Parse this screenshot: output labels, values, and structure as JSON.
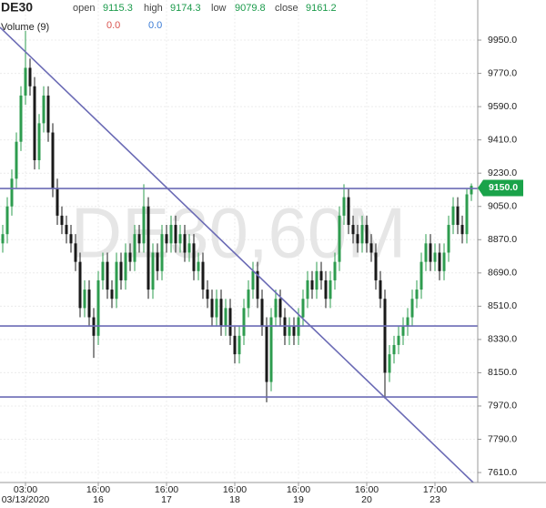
{
  "chart_data": {
    "type": "candlestick",
    "symbol": "DE30",
    "header": [
      {
        "label": "open",
        "value": "9115.3"
      },
      {
        "label": "high",
        "value": "9174.3"
      },
      {
        "label": "low",
        "value": "9079.8"
      },
      {
        "label": "close",
        "value": "9161.2"
      }
    ],
    "volume_label": "Volume (9)",
    "volume_values": [
      {
        "text": "0.0",
        "color": "#d9534f"
      },
      {
        "text": "0.0",
        "color": "#3a7bd5"
      }
    ],
    "watermark": "DE30,60M",
    "up_color": "#2e9c4f",
    "down_color": "#1a1a1a",
    "categories": [
      null,
      null,
      null,
      null,
      null,
      "03:00",
      null,
      null,
      null,
      null,
      null,
      null,
      null,
      null,
      null,
      null,
      null,
      null,
      null,
      null,
      null,
      "16:00",
      null,
      null,
      null,
      null,
      null,
      null,
      null,
      null,
      null,
      null,
      null,
      null,
      null,
      null,
      "16:00",
      null,
      null,
      null,
      null,
      null,
      null,
      null,
      null,
      null,
      null,
      null,
      null,
      null,
      null,
      "16:00",
      null,
      null,
      null,
      null,
      null,
      null,
      null,
      null,
      null,
      null,
      null,
      null,
      null,
      "16:00",
      null,
      null,
      null,
      null,
      null,
      null,
      null,
      null,
      null,
      null,
      null,
      null,
      null,
      null,
      "16:00",
      null,
      null,
      null,
      null,
      null,
      null,
      null,
      null,
      null,
      null,
      null,
      null,
      null,
      null,
      "17:00",
      null,
      null,
      null,
      null,
      null,
      null,
      null,
      null
    ],
    "dates": [
      null,
      null,
      null,
      null,
      null,
      "03/13/2020",
      null,
      null,
      null,
      null,
      null,
      null,
      null,
      null,
      null,
      null,
      null,
      null,
      null,
      null,
      null,
      "16",
      null,
      null,
      null,
      null,
      null,
      null,
      null,
      null,
      null,
      null,
      null,
      null,
      null,
      null,
      "17",
      null,
      null,
      null,
      null,
      null,
      null,
      null,
      null,
      null,
      null,
      null,
      null,
      null,
      null,
      "18",
      null,
      null,
      null,
      null,
      null,
      null,
      null,
      null,
      null,
      null,
      null,
      null,
      null,
      "19",
      null,
      null,
      null,
      null,
      null,
      null,
      null,
      null,
      null,
      null,
      null,
      null,
      null,
      null,
      "20",
      null,
      null,
      null,
      null,
      null,
      null,
      null,
      null,
      null,
      null,
      null,
      null,
      null,
      null,
      "23",
      null,
      null,
      null,
      null,
      null,
      null,
      null,
      null
    ],
    "open": [
      8850,
      8900,
      9050,
      9200,
      9400,
      9650,
      9800,
      9700,
      9300,
      9500,
      9650,
      9450,
      9150,
      9000,
      8950,
      8900,
      8850,
      8750,
      8500,
      8600,
      8450,
      8350,
      8650,
      8750,
      8600,
      8550,
      8750,
      8650,
      8800,
      8750,
      8900,
      8850,
      9050,
      8600,
      8800,
      8700,
      8900,
      8850,
      8950,
      8850,
      8900,
      8800,
      8850,
      8700,
      8750,
      8600,
      8550,
      8450,
      8550,
      8400,
      8500,
      8350,
      8250,
      8350,
      8500,
      8600,
      8700,
      8550,
      8400,
      8100,
      8450,
      8550,
      8450,
      8350,
      8400,
      8350,
      8450,
      8550,
      8650,
      8600,
      8700,
      8650,
      8550,
      8650,
      8750,
      9000,
      9100,
      8950,
      8900,
      8850,
      8950,
      8850,
      8800,
      8650,
      8550,
      8150,
      8250,
      8300,
      8350,
      8400,
      8450,
      8550,
      8600,
      8750,
      8850,
      8750,
      8800,
      8700,
      8800,
      8950,
      9050,
      8950,
      8900,
      9115.3
    ],
    "high": [
      8950,
      9100,
      9250,
      9450,
      9700,
      10000,
      9850,
      9750,
      9550,
      9700,
      9700,
      9500,
      9200,
      9050,
      9000,
      8950,
      8900,
      8800,
      8650,
      8650,
      8500,
      8700,
      8800,
      8800,
      8650,
      8800,
      8800,
      8850,
      8850,
      8950,
      8950,
      9170,
      9100,
      8850,
      8850,
      8950,
      8950,
      9000,
      9000,
      8950,
      8950,
      8900,
      8900,
      8800,
      8800,
      8650,
      8600,
      8600,
      8600,
      8550,
      8550,
      8400,
      8400,
      8550,
      8650,
      8750,
      8750,
      8600,
      8450,
      8500,
      8600,
      8600,
      8500,
      8450,
      8450,
      8500,
      8600,
      8700,
      8700,
      8750,
      8750,
      8700,
      8700,
      8800,
      9050,
      9170,
      9150,
      9000,
      8950,
      9000,
      9000,
      8900,
      8850,
      8700,
      8600,
      8300,
      8350,
      8400,
      8450,
      8500,
      8600,
      8650,
      8800,
      8900,
      8900,
      8850,
      8850,
      8850,
      9000,
      9100,
      9100,
      9000,
      9150,
      9174.3
    ],
    "low": [
      8800,
      8850,
      9000,
      9150,
      9350,
      9600,
      9650,
      9250,
      9250,
      9450,
      9400,
      9100,
      8950,
      8900,
      8850,
      8800,
      8700,
      8450,
      8450,
      8400,
      8230,
      8300,
      8600,
      8550,
      8500,
      8500,
      8600,
      8600,
      8700,
      8700,
      8800,
      8800,
      8550,
      8550,
      8650,
      8650,
      8800,
      8800,
      8800,
      8800,
      8750,
      8750,
      8650,
      8650,
      8550,
      8500,
      8400,
      8400,
      8350,
      8350,
      8300,
      8200,
      8200,
      8300,
      8450,
      8550,
      8500,
      8350,
      7990,
      8050,
      8400,
      8400,
      8300,
      8300,
      8300,
      8300,
      8400,
      8500,
      8550,
      8550,
      8600,
      8500,
      8500,
      8600,
      8700,
      8950,
      8900,
      8850,
      8800,
      8800,
      8800,
      8750,
      8600,
      8500,
      8010,
      8100,
      8200,
      8250,
      8300,
      8350,
      8400,
      8500,
      8550,
      8700,
      8700,
      8700,
      8650,
      8650,
      8750,
      8900,
      8900,
      8850,
      8850,
      9079.8
    ],
    "close": [
      8900,
      9050,
      9200,
      9400,
      9650,
      9800,
      9700,
      9300,
      9500,
      9650,
      9450,
      9150,
      9000,
      8950,
      8900,
      8850,
      8750,
      8500,
      8600,
      8450,
      8350,
      8650,
      8750,
      8600,
      8550,
      8750,
      8650,
      8800,
      8750,
      8900,
      8850,
      9050,
      8600,
      8800,
      8700,
      8900,
      8850,
      8950,
      8850,
      8900,
      8800,
      8850,
      8700,
      8750,
      8600,
      8550,
      8450,
      8550,
      8400,
      8500,
      8350,
      8250,
      8350,
      8500,
      8600,
      8700,
      8550,
      8400,
      8100,
      8450,
      8550,
      8450,
      8350,
      8400,
      8350,
      8450,
      8550,
      8650,
      8600,
      8700,
      8650,
      8550,
      8650,
      8750,
      9000,
      9100,
      8950,
      8900,
      8850,
      8950,
      8850,
      8800,
      8650,
      8550,
      8150,
      8250,
      8300,
      8350,
      8400,
      8450,
      8550,
      8600,
      8750,
      8850,
      8750,
      8800,
      8700,
      8800,
      8950,
      9050,
      8950,
      8900,
      9115.3,
      9161.2
    ],
    "ylim": [
      7556,
      10167
    ],
    "yticks": [
      {
        "value": 9950,
        "label": "9950.0"
      },
      {
        "value": 9770,
        "label": "9770.0"
      },
      {
        "value": 9590,
        "label": "9590.0"
      },
      {
        "value": 9410,
        "label": "9410.0"
      },
      {
        "value": 9230,
        "label": "9230.0"
      },
      {
        "value": 9050,
        "label": "9050.0"
      },
      {
        "value": 8870,
        "label": "8870.0"
      },
      {
        "value": 8690,
        "label": "8690.0"
      },
      {
        "value": 8510,
        "label": "8510.0"
      },
      {
        "value": 8330,
        "label": "8330.0"
      },
      {
        "value": 8150,
        "label": "8150.0"
      },
      {
        "value": 7970,
        "label": "7970.0"
      },
      {
        "value": 7790,
        "label": "7790.0"
      },
      {
        "value": 7610,
        "label": "7610.0"
      }
    ],
    "grid": true,
    "price_label": {
      "value": 9150,
      "label": "9150.0",
      "color": "#1aa34a"
    },
    "trendline_color": "#6b6bb5",
    "horizontal_lines": [
      9147,
      8403,
      8019
    ],
    "trendlines": [
      {
        "x": [
          -0.6,
          103.4
        ],
        "y": [
          10019,
          7556
        ]
      }
    ]
  }
}
